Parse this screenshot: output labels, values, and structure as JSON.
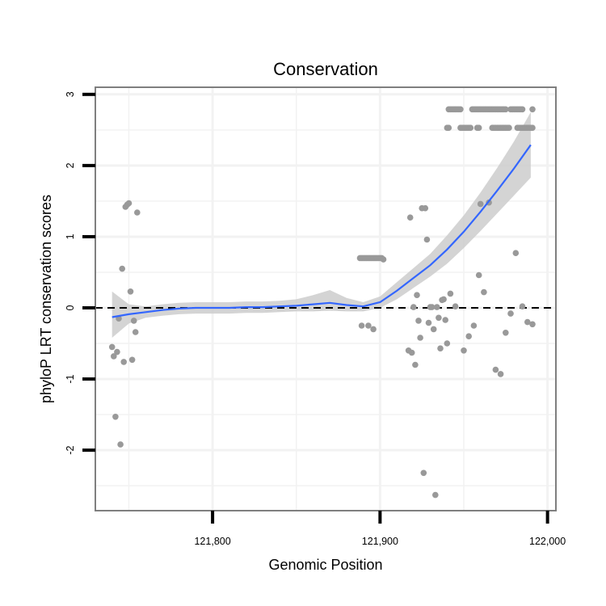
{
  "chart_data": {
    "type": "scatter",
    "title": "Conservation",
    "xlabel": "Genomic Position",
    "ylabel": "phyloP LRT conservation scores",
    "xlim": [
      121730,
      122005
    ],
    "ylim": [
      -2.85,
      3.1
    ],
    "x_ticks": [
      121800,
      121900,
      122000
    ],
    "x_tick_labels": [
      "121,800",
      "121,900",
      "122,000"
    ],
    "y_ticks": [
      -2,
      -1,
      0,
      1,
      2,
      3
    ],
    "y_tick_labels": [
      "-2",
      "-1",
      "0",
      "1",
      "2",
      "3"
    ],
    "grid": true,
    "reference_line": {
      "y": 0,
      "style": "dashed"
    },
    "colors": {
      "points": "#999999",
      "smooth": "#3366ff",
      "ribbon": "#cccccc",
      "panel_border": "#7f7f7f",
      "grid": "#f2f2f2"
    },
    "series": [
      {
        "name": "points",
        "kind": "scatter",
        "points": [
          [
            121740,
            -0.55
          ],
          [
            121741,
            -0.68
          ],
          [
            121742,
            -1.53
          ],
          [
            121743,
            -0.62
          ],
          [
            121744,
            -0.15
          ],
          [
            121745,
            -1.92
          ],
          [
            121746,
            0.55
          ],
          [
            121747,
            -0.76
          ],
          [
            121748,
            1.42
          ],
          [
            121749,
            1.45
          ],
          [
            121750,
            1.47
          ],
          [
            121751,
            0.23
          ],
          [
            121752,
            -0.73
          ],
          [
            121753,
            -0.18
          ],
          [
            121754,
            -0.34
          ],
          [
            121755,
            1.34
          ],
          [
            121888,
            0.7
          ],
          [
            121889,
            0.7
          ],
          [
            121890,
            0.7
          ],
          [
            121891,
            0.7
          ],
          [
            121892,
            0.7
          ],
          [
            121893,
            0.7
          ],
          [
            121894,
            0.7
          ],
          [
            121895,
            0.7
          ],
          [
            121896,
            0.7
          ],
          [
            121897,
            0.7
          ],
          [
            121898,
            0.7
          ],
          [
            121899,
            0.7
          ],
          [
            121900,
            0.7
          ],
          [
            121901,
            0.7
          ],
          [
            121902,
            0.68
          ],
          [
            121889,
            -0.25
          ],
          [
            121893,
            -0.25
          ],
          [
            121896,
            -0.3
          ],
          [
            121917,
            -0.6
          ],
          [
            121918,
            1.27
          ],
          [
            121919,
            -0.63
          ],
          [
            121920,
            0.01
          ],
          [
            121921,
            -0.8
          ],
          [
            121922,
            0.18
          ],
          [
            121923,
            -0.18
          ],
          [
            121924,
            -0.42
          ],
          [
            121925,
            1.4
          ],
          [
            121926,
            -2.32
          ],
          [
            121927,
            1.4
          ],
          [
            121928,
            0.96
          ],
          [
            121929,
            -0.21
          ],
          [
            121930,
            0.01
          ],
          [
            121931,
            0.01
          ],
          [
            121932,
            -0.3
          ],
          [
            121933,
            -2.63
          ],
          [
            121934,
            0.01
          ],
          [
            121935,
            -0.14
          ],
          [
            121936,
            -0.57
          ],
          [
            121937,
            0.11
          ],
          [
            121938,
            0.12
          ],
          [
            121939,
            -0.17
          ],
          [
            121940,
            -0.5
          ],
          [
            121942,
            0.2
          ],
          [
            121945,
            0.02
          ],
          [
            121950,
            -0.6
          ],
          [
            121953,
            -0.4
          ],
          [
            121956,
            -0.25
          ],
          [
            121959,
            0.46
          ],
          [
            121960,
            1.46
          ],
          [
            121962,
            0.22
          ],
          [
            121965,
            1.48
          ],
          [
            121969,
            -0.87
          ],
          [
            121972,
            -0.93
          ],
          [
            121975,
            -0.35
          ],
          [
            121978,
            -0.08
          ],
          [
            121981,
            0.77
          ],
          [
            121985,
            0.02
          ],
          [
            121988,
            -0.2
          ],
          [
            121991,
            -0.23
          ],
          [
            121941,
            2.79
          ],
          [
            121942,
            2.79
          ],
          [
            121943,
            2.79
          ],
          [
            121944,
            2.79
          ],
          [
            121945,
            2.79
          ],
          [
            121946,
            2.79
          ],
          [
            121947,
            2.79
          ],
          [
            121948,
            2.79
          ],
          [
            121955,
            2.79
          ],
          [
            121956,
            2.79
          ],
          [
            121957,
            2.79
          ],
          [
            121958,
            2.79
          ],
          [
            121959,
            2.79
          ],
          [
            121960,
            2.79
          ],
          [
            121961,
            2.79
          ],
          [
            121962,
            2.79
          ],
          [
            121963,
            2.79
          ],
          [
            121964,
            2.79
          ],
          [
            121965,
            2.79
          ],
          [
            121966,
            2.79
          ],
          [
            121967,
            2.79
          ],
          [
            121968,
            2.79
          ],
          [
            121969,
            2.79
          ],
          [
            121970,
            2.79
          ],
          [
            121971,
            2.79
          ],
          [
            121972,
            2.79
          ],
          [
            121973,
            2.79
          ],
          [
            121974,
            2.79
          ],
          [
            121975,
            2.79
          ],
          [
            121978,
            2.79
          ],
          [
            121979,
            2.79
          ],
          [
            121980,
            2.79
          ],
          [
            121981,
            2.79
          ],
          [
            121982,
            2.79
          ],
          [
            121983,
            2.79
          ],
          [
            121984,
            2.79
          ],
          [
            121985,
            2.79
          ],
          [
            121991,
            2.79
          ],
          [
            121940,
            2.53
          ],
          [
            121941,
            2.53
          ],
          [
            121948,
            2.53
          ],
          [
            121949,
            2.53
          ],
          [
            121950,
            2.53
          ],
          [
            121951,
            2.53
          ],
          [
            121952,
            2.53
          ],
          [
            121953,
            2.53
          ],
          [
            121954,
            2.53
          ],
          [
            121958,
            2.53
          ],
          [
            121959,
            2.53
          ],
          [
            121967,
            2.53
          ],
          [
            121968,
            2.53
          ],
          [
            121969,
            2.53
          ],
          [
            121970,
            2.53
          ],
          [
            121971,
            2.53
          ],
          [
            121972,
            2.53
          ],
          [
            121973,
            2.53
          ],
          [
            121974,
            2.53
          ],
          [
            121975,
            2.53
          ],
          [
            121976,
            2.53
          ],
          [
            121977,
            2.53
          ],
          [
            121982,
            2.53
          ],
          [
            121983,
            2.53
          ],
          [
            121984,
            2.53
          ],
          [
            121985,
            2.53
          ],
          [
            121986,
            2.53
          ],
          [
            121987,
            2.53
          ],
          [
            121988,
            2.53
          ],
          [
            121989,
            2.53
          ],
          [
            121990,
            2.53
          ],
          [
            121991,
            2.53
          ]
        ]
      },
      {
        "name": "loess smooth",
        "kind": "line",
        "x": [
          121740,
          121750,
          121760,
          121770,
          121780,
          121790,
          121800,
          121810,
          121820,
          121830,
          121840,
          121850,
          121860,
          121870,
          121880,
          121890,
          121900,
          121910,
          121920,
          121930,
          121940,
          121950,
          121960,
          121970,
          121980,
          121990
        ],
        "y": [
          -0.13,
          -0.09,
          -0.06,
          -0.03,
          -0.01,
          0.0,
          0.0,
          0.0,
          0.01,
          0.01,
          0.02,
          0.03,
          0.05,
          0.07,
          0.04,
          0.02,
          0.08,
          0.24,
          0.42,
          0.6,
          0.82,
          1.07,
          1.35,
          1.65,
          1.96,
          2.29
        ],
        "lower": [
          -0.42,
          -0.22,
          -0.14,
          -0.11,
          -0.09,
          -0.08,
          -0.08,
          -0.08,
          -0.07,
          -0.07,
          -0.06,
          -0.05,
          -0.05,
          -0.04,
          -0.05,
          -0.05,
          0.0,
          0.12,
          0.28,
          0.44,
          0.62,
          0.84,
          1.08,
          1.33,
          1.58,
          1.83
        ],
        "upper": [
          0.23,
          0.05,
          0.02,
          0.05,
          0.07,
          0.08,
          0.08,
          0.08,
          0.09,
          0.09,
          0.1,
          0.12,
          0.18,
          0.25,
          0.14,
          0.08,
          0.16,
          0.36,
          0.56,
          0.76,
          1.02,
          1.3,
          1.62,
          1.97,
          2.34,
          2.75
        ]
      }
    ]
  }
}
